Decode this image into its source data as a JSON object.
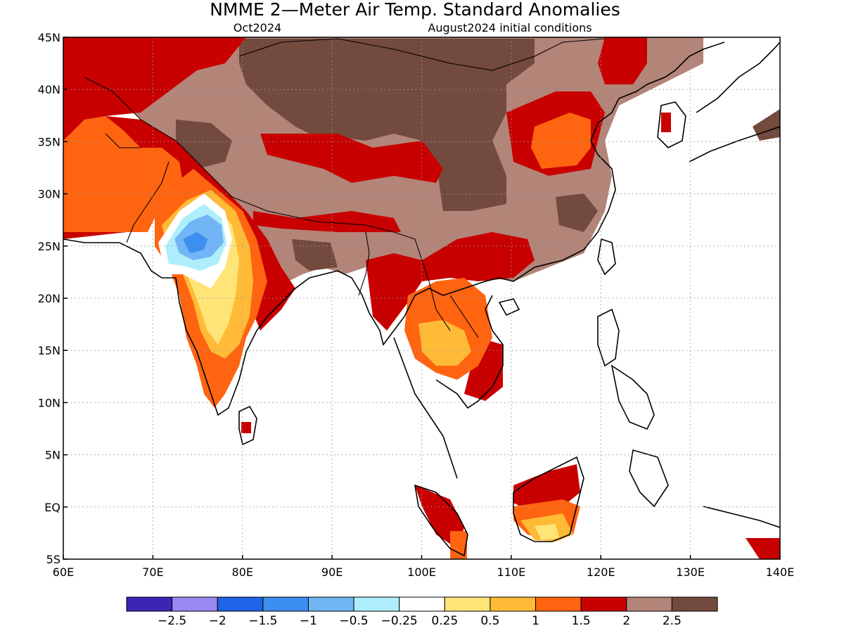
{
  "title": "NMME 2—Meter Air Temp. Standard Anomalies",
  "subtitle_left": "Oct2024",
  "subtitle_right": "August2024 initial conditions",
  "map": {
    "lon_range": [
      60,
      140
    ],
    "lat_range": [
      -5,
      45
    ],
    "lon_ticks": [
      "60E",
      "70E",
      "80E",
      "90E",
      "100E",
      "110E",
      "120E",
      "130E",
      "140E"
    ],
    "lat_ticks": [
      "45N",
      "40N",
      "35N",
      "30N",
      "25N",
      "20N",
      "15N",
      "10N",
      "5N",
      "EQ",
      "5S"
    ],
    "gridlines": true
  },
  "colorbar": {
    "colors": [
      "#3a25b5",
      "#9a87f2",
      "#1f63e6",
      "#3c8ef0",
      "#72b5f5",
      "#aeeefc",
      "#ffffff",
      "#ffe478",
      "#ffbb36",
      "#ff6410",
      "#c80000",
      "#b38478",
      "#734a3e"
    ],
    "labels": [
      "−2.5",
      "−2",
      "−1.5",
      "−1",
      "−0.5",
      "−0.25",
      "0.25",
      "0.5",
      "1",
      "1.5",
      "2",
      "2.5"
    ]
  }
}
